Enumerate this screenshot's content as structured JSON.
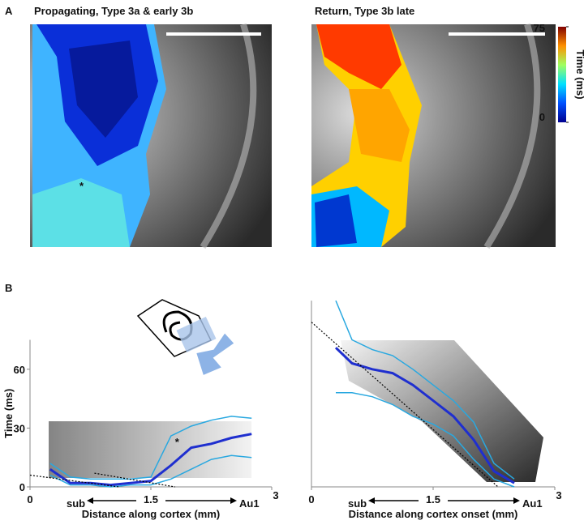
{
  "panel_a": {
    "label": "A",
    "images": [
      {
        "title": "Propagating, Type 3a & early 3b",
        "annotation": "*"
      },
      {
        "title": "Return, Type 3b late"
      }
    ],
    "colorbar": {
      "label": "Time (ms)",
      "lim": [
        0,
        75
      ],
      "ticks": [
        0,
        75
      ]
    }
  },
  "panel_b": {
    "label": "B"
  },
  "chart_data": [
    {
      "type": "line",
      "ylabel": "Time (ms)",
      "xlabel": "Distance along cortex (mm)",
      "left_label": "sub",
      "right_label": "Au1",
      "annotation": "*",
      "xlim": [
        0,
        3
      ],
      "ylim": [
        0,
        75
      ],
      "xticks": [
        0,
        1.5,
        3
      ],
      "yticks": [
        0,
        30,
        60
      ],
      "x": [
        0.25,
        0.5,
        0.75,
        1.0,
        1.25,
        1.5,
        1.75,
        2.0,
        2.25,
        2.5,
        2.75
      ],
      "series": [
        {
          "color": "#29a8e0",
          "values": [
            12,
            5,
            4,
            4,
            4,
            5,
            26,
            31,
            34,
            36,
            35
          ]
        },
        {
          "color": "#29a8e0",
          "values": [
            6,
            1,
            1,
            0,
            1,
            1,
            4,
            9,
            14,
            16,
            15
          ]
        },
        {
          "color": "#1f2fcf",
          "values": [
            9,
            2,
            2,
            1,
            2,
            3,
            11,
            20,
            22,
            25,
            27
          ]
        },
        {
          "color": "#000000",
          "style": "dotted",
          "x": [
            0,
            1.1
          ],
          "values": [
            6,
            0
          ]
        },
        {
          "color": "#000000",
          "style": "dotted",
          "x": [
            0.8,
            1.8
          ],
          "values": [
            7,
            0
          ]
        }
      ]
    },
    {
      "type": "line",
      "xlabel": "Distance along cortex onset (mm)",
      "left_label": "sub",
      "right_label": "Au1",
      "xlim": [
        0,
        3
      ],
      "ylim": [
        0,
        95
      ],
      "xticks": [
        0,
        1.5,
        3
      ],
      "x": [
        0.3,
        0.5,
        0.75,
        1.0,
        1.25,
        1.5,
        1.75,
        2.0,
        2.25,
        2.5
      ],
      "series": [
        {
          "color": "#29a8e0",
          "values": [
            95,
            75,
            70,
            67,
            60,
            52,
            44,
            33,
            12,
            4
          ]
        },
        {
          "color": "#29a8e0",
          "values": [
            48,
            48,
            46,
            42,
            36,
            32,
            26,
            14,
            4,
            0
          ]
        },
        {
          "color": "#1f2fcf",
          "values": [
            71,
            63,
            60,
            58,
            52,
            44,
            36,
            24,
            8,
            2
          ]
        },
        {
          "color": "#000000",
          "style": "dotted",
          "x": [
            0,
            2.3
          ],
          "values": [
            84,
            0
          ]
        }
      ]
    }
  ]
}
